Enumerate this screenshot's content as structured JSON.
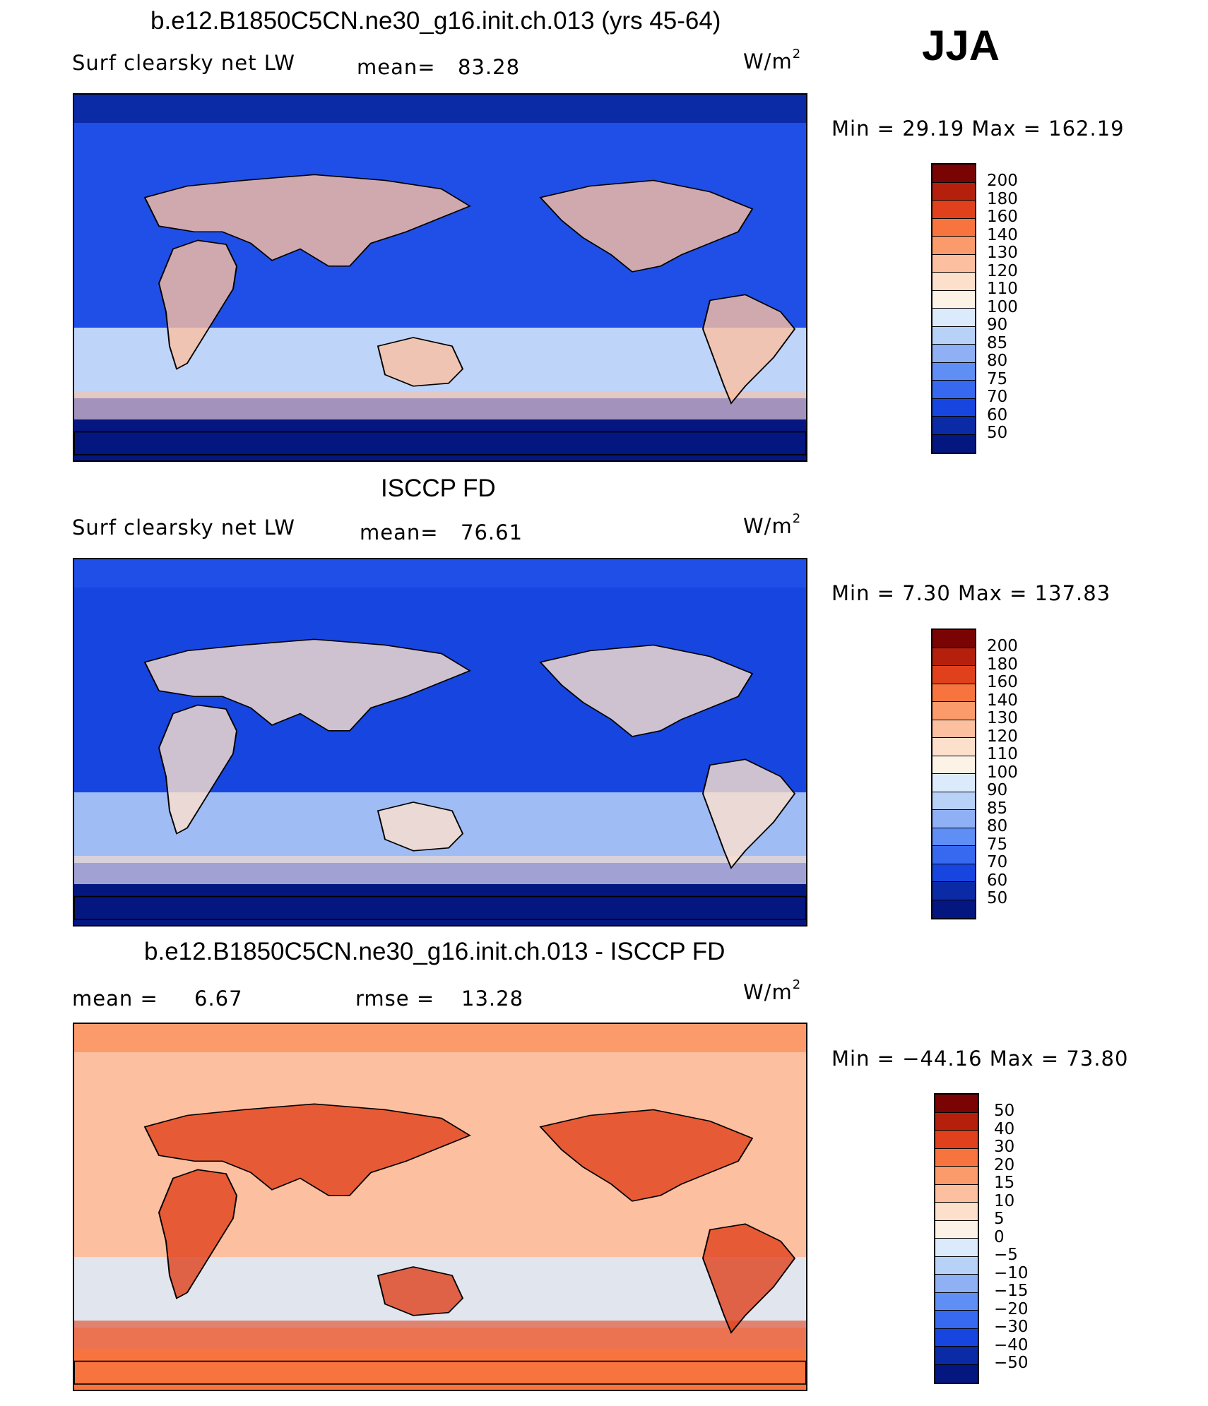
{
  "season": "JJA",
  "panels": [
    {
      "title": "b.e12.B1850C5CN.ne30_g16.init.ch.013 (yrs 45-64)",
      "left_label": "Surf clearsky net LW",
      "stat_label": "mean=",
      "stat_value": "83.28",
      "units_base": "W/m",
      "units_exp": "2",
      "minmax": "Min =   29.19  Max  =  162.19",
      "colorbar": {
        "labels": [
          "200",
          "180",
          "160",
          "140",
          "130",
          "120",
          "110",
          "100",
          "90",
          "85",
          "80",
          "75",
          "70",
          "60",
          "50"
        ],
        "colors": [
          "#7a0403",
          "#b5200d",
          "#e0411c",
          "#f7743e",
          "#fb9b6c",
          "#fcbfa0",
          "#fde0cc",
          "#fdf2e6",
          "#dcebfb",
          "#b7d1f7",
          "#8fb0f5",
          "#5f8ef4",
          "#3669f0",
          "#1745e0",
          "#0a2aa6",
          "#041680"
        ]
      },
      "map_colors": {
        "background": "#1f4fe6",
        "band_polar_n": "#0a2aa6",
        "band_polar_s": "#041680",
        "land_warm": "#fcbfa0",
        "ocean_light": "#dcebfb"
      }
    },
    {
      "title": "ISCCP FD",
      "left_label": "Surf clearsky net LW",
      "stat_label": "mean=",
      "stat_value": "76.61",
      "units_base": "W/m",
      "units_exp": "2",
      "minmax": "Min =     7.30  Max  =  137.83",
      "colorbar": {
        "labels": [
          "200",
          "180",
          "160",
          "140",
          "130",
          "120",
          "110",
          "100",
          "90",
          "85",
          "80",
          "75",
          "70",
          "60",
          "50"
        ],
        "colors": [
          "#7a0403",
          "#b5200d",
          "#e0411c",
          "#f7743e",
          "#fb9b6c",
          "#fcbfa0",
          "#fde0cc",
          "#fdf2e6",
          "#dcebfb",
          "#b7d1f7",
          "#8fb0f5",
          "#5f8ef4",
          "#3669f0",
          "#1745e0",
          "#0a2aa6",
          "#041680"
        ]
      },
      "map_colors": {
        "background": "#1745e0",
        "band_polar_n": "#1f4fe6",
        "band_polar_s": "#041680",
        "land_warm": "#fde0cc",
        "ocean_light": "#b7d1f7"
      }
    },
    {
      "title": "b.e12.B1850C5CN.ne30_g16.init.ch.013 - ISCCP FD",
      "left_label": "mean =",
      "left_value": "6.67",
      "stat_label": "rmse =",
      "stat_value": "13.28",
      "units_base": "W/m",
      "units_exp": "2",
      "minmax": "Min  = −44.16  Max  =    73.80",
      "colorbar": {
        "labels": [
          "50",
          "40",
          "30",
          "20",
          "15",
          "10",
          "5",
          "0",
          "−5",
          "−10",
          "−15",
          "−20",
          "−30",
          "−40",
          "−50"
        ],
        "colors": [
          "#7a0403",
          "#b5200d",
          "#e0411c",
          "#f7743e",
          "#fb9b6c",
          "#fcbfa0",
          "#fde0cc",
          "#fdf2e6",
          "#dcebfb",
          "#b7d1f7",
          "#8fb0f5",
          "#5f8ef4",
          "#3669f0",
          "#1745e0",
          "#0a2aa6",
          "#041680"
        ]
      },
      "map_colors": {
        "background": "#fcbfa0",
        "band_polar_n": "#fb9b6c",
        "band_polar_s": "#f7743e",
        "land_warm": "#e0411c",
        "ocean_light": "#dcebfb"
      }
    }
  ]
}
